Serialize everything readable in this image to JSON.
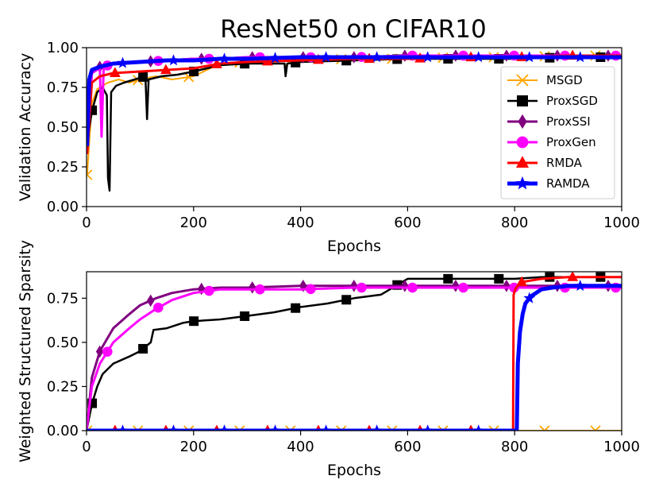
{
  "chart_data": {
    "title": "ResNet50 on CIFAR10",
    "legend": {
      "placement": "center-right",
      "entries": [
        {
          "name": "MSGD",
          "color": "#ffa500",
          "marker": "x"
        },
        {
          "name": "ProxSGD",
          "color": "#000000",
          "marker": "square"
        },
        {
          "name": "ProxSSI",
          "color": "#800080",
          "marker": "thin-diamond"
        },
        {
          "name": "ProxGen",
          "color": "#ff00ff",
          "marker": "circle"
        },
        {
          "name": "RMDA",
          "color": "#ff0000",
          "marker": "triangle"
        },
        {
          "name": "RAMDA",
          "color": "#0000ff",
          "marker": "star"
        }
      ]
    },
    "charts": [
      {
        "id": "accuracy",
        "type": "line",
        "xlabel": "Epochs",
        "ylabel": "Validation Accuracy",
        "xlim": [
          0,
          1000
        ],
        "ylim": [
          0,
          1.0
        ],
        "xticks": [
          "0",
          "200",
          "400",
          "600",
          "800",
          "1000"
        ],
        "yticks": [
          "0.00",
          "0.25",
          "0.50",
          "0.75",
          "1.00"
        ],
        "series": [
          {
            "name": "MSGD",
            "x": [
              1,
              10,
              20,
              40,
              60,
              80,
              100,
              130,
              160,
              200,
              250,
              300,
              400,
              500,
              600,
              700,
              800,
              900,
              1000
            ],
            "y": [
              0.2,
              0.65,
              0.74,
              0.78,
              0.8,
              0.78,
              0.8,
              0.82,
              0.8,
              0.82,
              0.9,
              0.91,
              0.92,
              0.93,
              0.93,
              0.94,
              0.94,
              0.95,
              0.95
            ]
          },
          {
            "name": "ProxSGD",
            "x": [
              1,
              10,
              20,
              30,
              38,
              40,
              43,
              46,
              55,
              70,
              90,
              110,
              113,
              116,
              140,
              170,
              200,
              250,
              300,
              370,
              372,
              375,
              400,
              500,
              600,
              700,
              800,
              900,
              1000
            ],
            "y": [
              0.4,
              0.6,
              0.72,
              0.75,
              0.7,
              0.18,
              0.1,
              0.72,
              0.76,
              0.78,
              0.8,
              0.82,
              0.55,
              0.8,
              0.82,
              0.83,
              0.85,
              0.89,
              0.9,
              0.9,
              0.82,
              0.9,
              0.91,
              0.92,
              0.93,
              0.93,
              0.93,
              0.94,
              0.94
            ]
          },
          {
            "name": "ProxSSI",
            "x": [
              1,
              10,
              25,
              50,
              100,
              150,
              200,
              250,
              300,
              400,
              500,
              600,
              700,
              800,
              900,
              1000
            ],
            "y": [
              0.4,
              0.84,
              0.88,
              0.9,
              0.91,
              0.92,
              0.93,
              0.93,
              0.94,
              0.94,
              0.94,
              0.95,
              0.95,
              0.95,
              0.95,
              0.95
            ]
          },
          {
            "name": "ProxGen",
            "x": [
              1,
              10,
              25,
              28,
              32,
              50,
              100,
              150,
              200,
              250,
              300,
              400,
              500,
              600,
              700,
              800,
              900,
              1000
            ],
            "y": [
              0.4,
              0.84,
              0.87,
              0.44,
              0.88,
              0.9,
              0.91,
              0.92,
              0.93,
              0.93,
              0.94,
              0.94,
              0.94,
              0.95,
              0.95,
              0.95,
              0.95,
              0.95
            ]
          },
          {
            "name": "RMDA",
            "x": [
              1,
              10,
              25,
              50,
              100,
              150,
              200,
              250,
              300,
              400,
              500,
              600,
              700,
              800,
              900,
              1000
            ],
            "y": [
              0.33,
              0.78,
              0.82,
              0.84,
              0.85,
              0.86,
              0.87,
              0.9,
              0.91,
              0.92,
              0.93,
              0.93,
              0.94,
              0.94,
              0.95,
              0.95
            ]
          },
          {
            "name": "RAMDA",
            "x": [
              1,
              5,
              10,
              25,
              50,
              100,
              150,
              200,
              250,
              300,
              400,
              500,
              600,
              700,
              800,
              900,
              1000
            ],
            "y": [
              0.38,
              0.8,
              0.86,
              0.88,
              0.9,
              0.91,
              0.92,
              0.92,
              0.93,
              0.93,
              0.94,
              0.94,
              0.94,
              0.94,
              0.94,
              0.94,
              0.94
            ]
          }
        ]
      },
      {
        "id": "sparsity",
        "type": "line",
        "xlabel": "Epochs",
        "ylabel": "Weighted Structured Sparsity",
        "xlim": [
          0,
          1000
        ],
        "ylim": [
          0,
          0.9
        ],
        "xticks": [
          "0",
          "200",
          "400",
          "600",
          "800",
          "1000"
        ],
        "yticks": [
          "0.00",
          "0.25",
          "0.50",
          "0.75"
        ],
        "series": [
          {
            "name": "MSGD",
            "x": [
              0,
              1000
            ],
            "y": [
              0.0,
              0.0
            ]
          },
          {
            "name": "ProxSGD",
            "x": [
              0,
              10,
              20,
              30,
              50,
              80,
              100,
              120,
              125,
              150,
              180,
              200,
              250,
              300,
              350,
              400,
              450,
              500,
              550,
              600,
              650,
              700,
              800,
              850,
              900,
              1000
            ],
            "y": [
              0.0,
              0.15,
              0.25,
              0.32,
              0.38,
              0.42,
              0.45,
              0.5,
              0.57,
              0.58,
              0.61,
              0.62,
              0.63,
              0.65,
              0.67,
              0.7,
              0.72,
              0.75,
              0.77,
              0.86,
              0.86,
              0.86,
              0.86,
              0.87,
              0.87,
              0.87
            ]
          },
          {
            "name": "ProxSSI",
            "x": [
              0,
              10,
              25,
              50,
              80,
              100,
              130,
              160,
              200,
              250,
              300,
              400,
              500,
              600,
              700,
              800,
              900,
              1000
            ],
            "y": [
              0.0,
              0.3,
              0.45,
              0.58,
              0.66,
              0.71,
              0.75,
              0.78,
              0.8,
              0.81,
              0.81,
              0.82,
              0.82,
              0.82,
              0.82,
              0.82,
              0.82,
              0.82
            ]
          },
          {
            "name": "ProxGen",
            "x": [
              0,
              10,
              25,
              50,
              80,
              100,
              130,
              160,
              200,
              250,
              300,
              400,
              500,
              600,
              700,
              800,
              900,
              1000
            ],
            "y": [
              0.0,
              0.25,
              0.38,
              0.5,
              0.58,
              0.63,
              0.69,
              0.74,
              0.78,
              0.8,
              0.8,
              0.8,
              0.81,
              0.81,
              0.81,
              0.81,
              0.81,
              0.81
            ]
          },
          {
            "name": "RMDA",
            "x": [
              0,
              797,
              798,
              801,
              810,
              850,
              900,
              1000
            ],
            "y": [
              0.0,
              0.0,
              0.77,
              0.8,
              0.84,
              0.86,
              0.87,
              0.87
            ]
          },
          {
            "name": "RAMDA",
            "x": [
              0,
              804,
              806,
              810,
              815,
              820,
              830,
              840,
              850,
              870,
              900,
              1000
            ],
            "y": [
              0.0,
              0.0,
              0.38,
              0.56,
              0.66,
              0.72,
              0.76,
              0.78,
              0.8,
              0.81,
              0.82,
              0.82
            ]
          }
        ]
      }
    ]
  }
}
